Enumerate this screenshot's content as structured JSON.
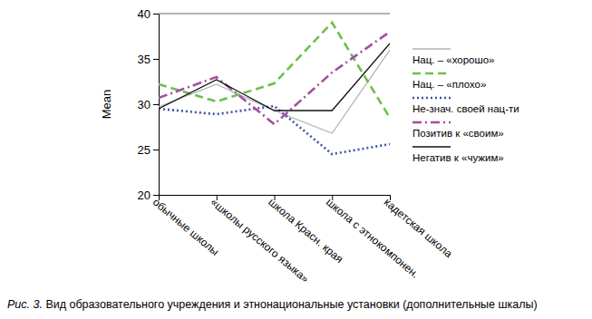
{
  "chart_data": {
    "type": "line",
    "title": "Рис. 3. Вид образовательного учреждения и этнонациональные установки (дополнительные шкалы)",
    "y_label": "Mean",
    "categories": [
      "обычные школы",
      "«школы русского языка»",
      "школа Красн. края",
      "школа с этнокомпонен.",
      "кадетская школа"
    ],
    "ylim": [
      20,
      40
    ],
    "yticks": [
      20,
      25,
      30,
      35,
      40
    ],
    "grid": false,
    "legend": "right",
    "series": [
      {
        "name": "Нац. – «хорошо»",
        "color": "#b3b3b3",
        "line_style": "solid",
        "values": [
          29.7,
          32.2,
          29.3,
          26.8,
          36.0
        ]
      },
      {
        "name": "Нац. – «плохо»",
        "color": "#6cbf4e",
        "line_style": "dashed",
        "values": [
          32.2,
          30.3,
          32.3,
          39.0,
          28.5
        ]
      },
      {
        "name": "Не-знач. своей нац-ти",
        "color": "#3d52a3",
        "line_style": "dotted",
        "values": [
          29.5,
          28.9,
          29.8,
          24.5,
          25.6
        ]
      },
      {
        "name": "Позитив к «своим»",
        "color": "#a3509d",
        "line_style": "dashdot",
        "values": [
          30.7,
          33.0,
          27.8,
          33.5,
          38.0
        ]
      },
      {
        "name": "Негатив к «чужим»",
        "color": "#111111",
        "line_style": "solid",
        "values": [
          29.5,
          32.7,
          29.3,
          29.3,
          36.7
        ]
      }
    ]
  }
}
